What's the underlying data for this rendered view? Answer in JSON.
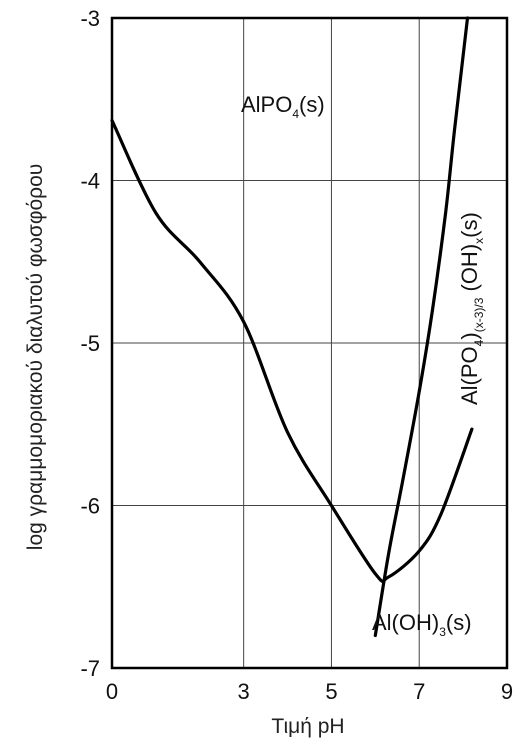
{
  "chart_data": {
    "type": "line",
    "xlabel": "Τιμή pH",
    "ylabel": "log γραμμομοριακού διαλυτού φωσφόρου",
    "xlim": [
      0,
      9
    ],
    "ylim": [
      -7,
      -3
    ],
    "x_ticks": [
      0,
      3,
      5,
      7,
      9
    ],
    "y_ticks": [
      -7,
      -6,
      -5,
      -4,
      -3
    ],
    "grid": true,
    "series": [
      {
        "name": "AlPO4(s)",
        "x": [
          0,
          1,
          2,
          3,
          4,
          5,
          6,
          6.3,
          7,
          7.5,
          8.2
        ],
        "y": [
          -3.63,
          -4.2,
          -4.5,
          -4.87,
          -5.55,
          -6.0,
          -6.42,
          -6.44,
          -6.28,
          -6.05,
          -5.53
        ]
      },
      {
        "name": "Al(OH)3(s)",
        "x": [
          6.0,
          6.3,
          6.6,
          7.0,
          7.3,
          7.6,
          7.8,
          8.1
        ],
        "y": [
          -6.8,
          -6.3,
          -5.88,
          -5.3,
          -4.8,
          -4.2,
          -3.7,
          -3.0
        ]
      }
    ],
    "annotations": {
      "alpo4": {
        "base": "AlPO",
        "sub": "4",
        "tail": "(s)"
      },
      "aloh3": {
        "base": "Al(OH)",
        "sub": "3",
        "tail": "(s)"
      },
      "mixed": {
        "base1": "Al(PO",
        "sub1": "4",
        "mid": ")",
        "sub2": "(x-3)/3",
        "base2": " (OH)",
        "sub3": "x",
        "tail": "(s)"
      }
    }
  }
}
